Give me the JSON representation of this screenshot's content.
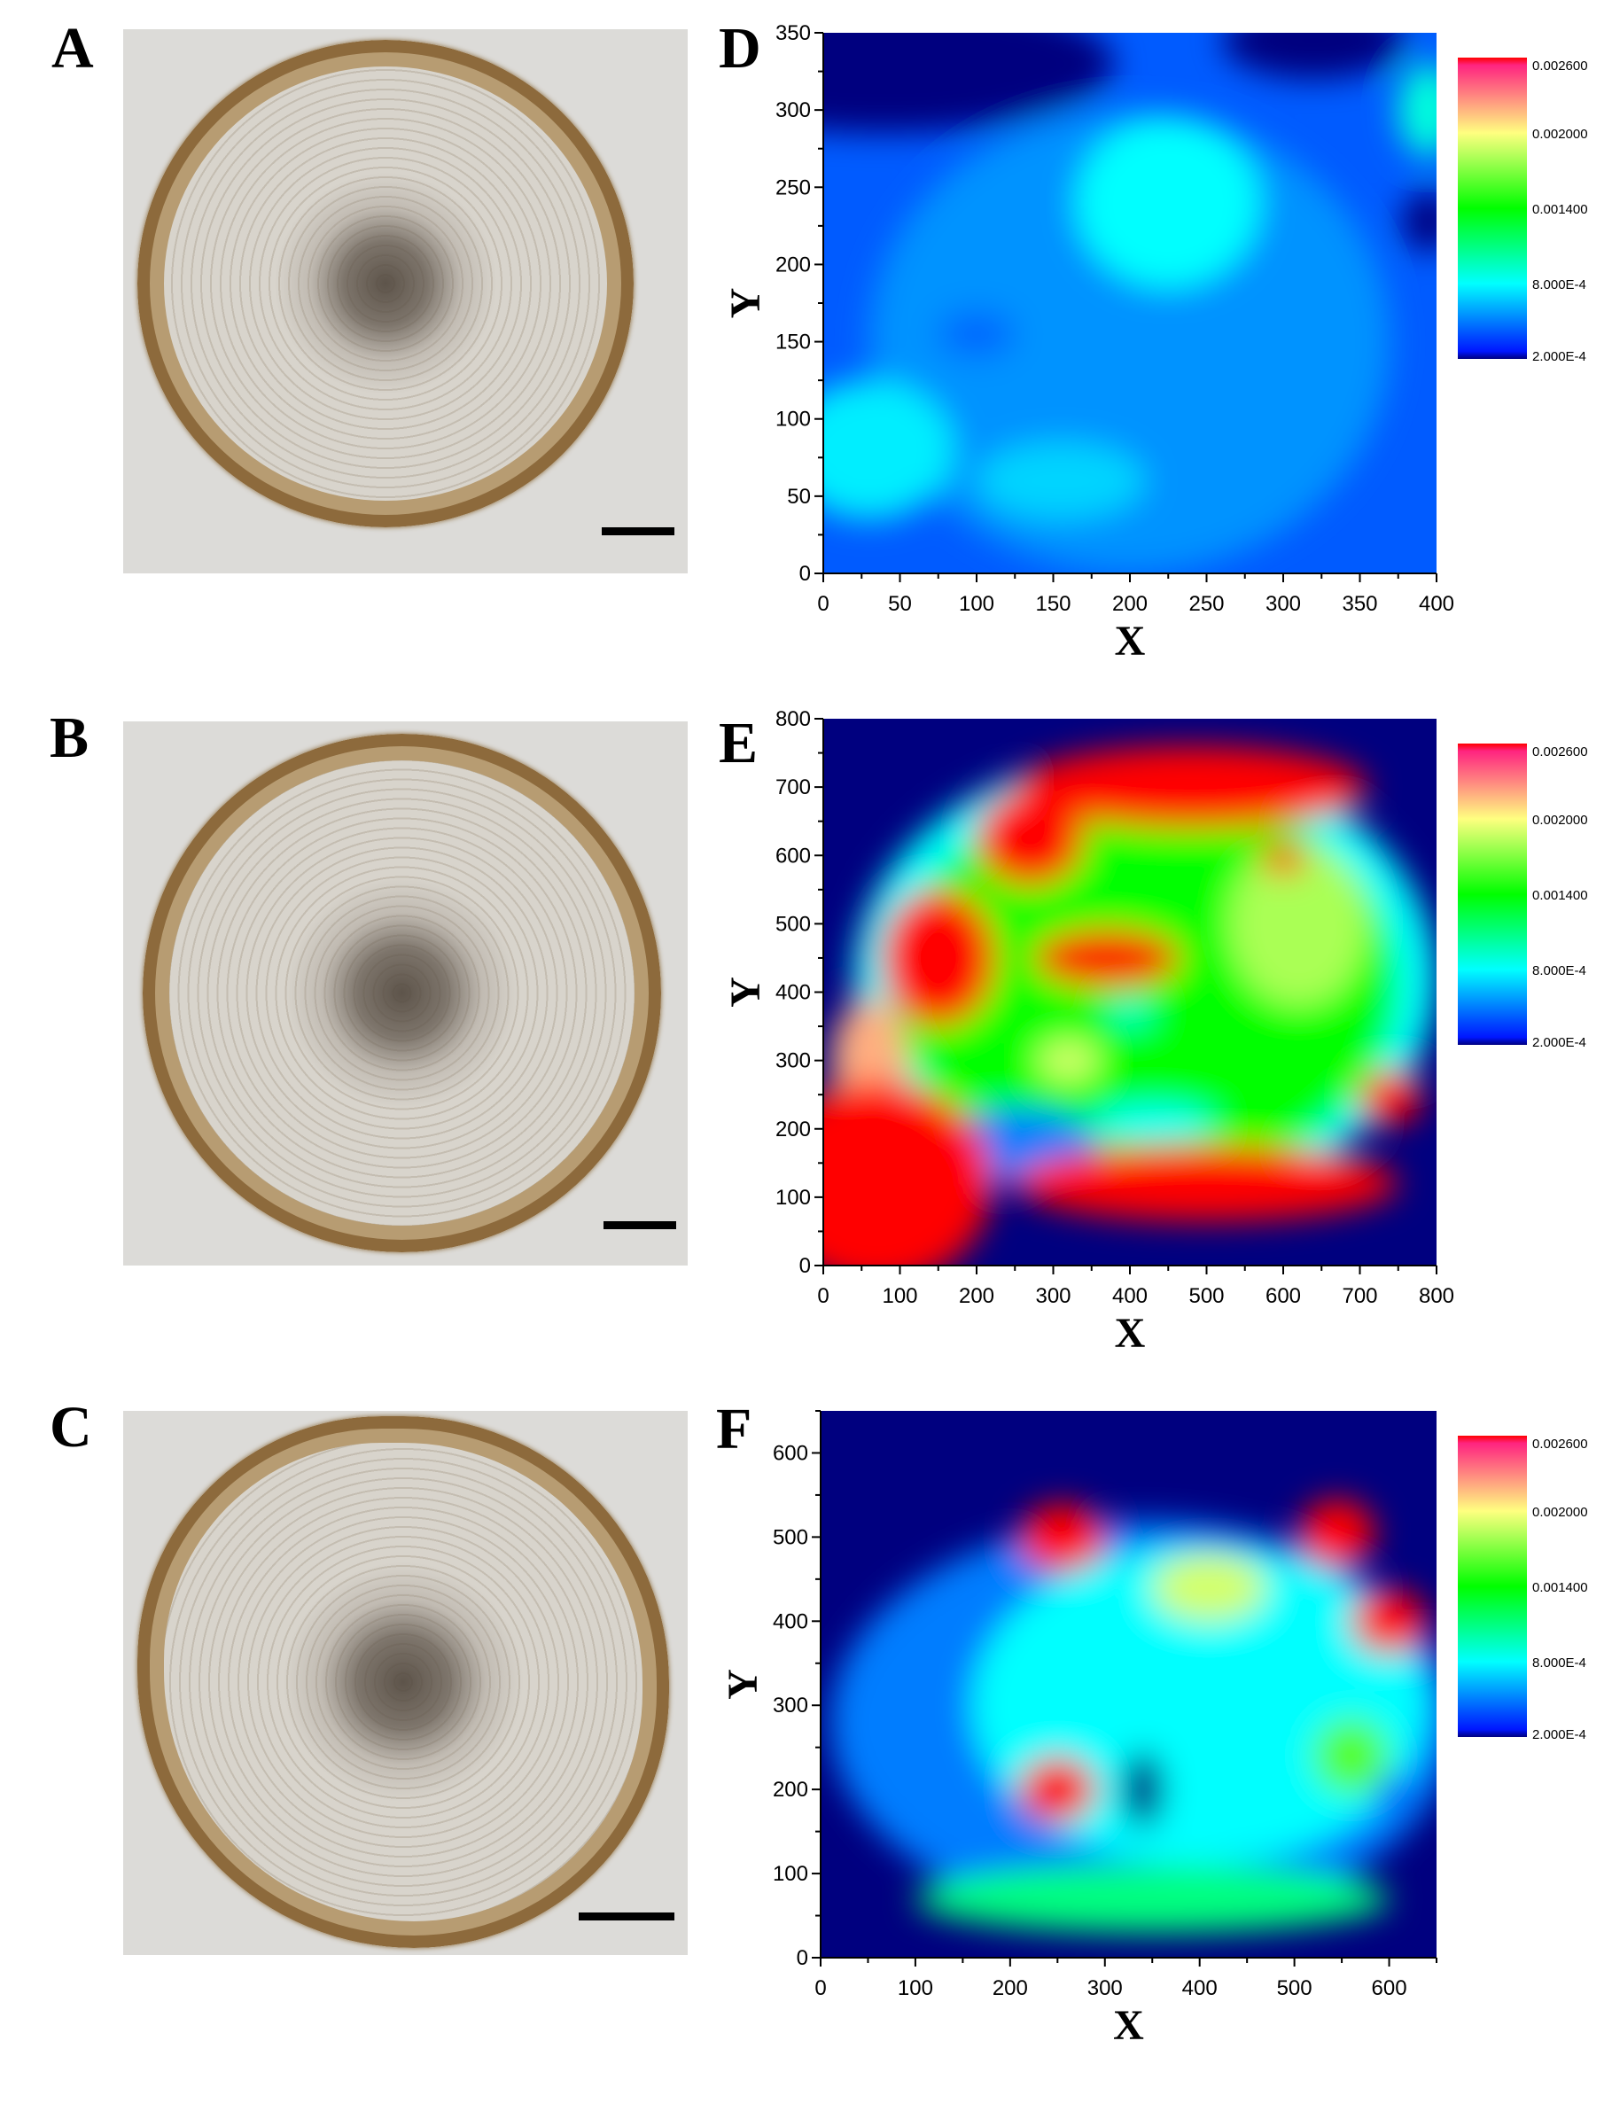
{
  "panel_labels": [
    "A",
    "B",
    "C",
    "D",
    "E",
    "F"
  ],
  "colormap": {
    "stops": [
      {
        "value": 0.0002,
        "color": "#00007f"
      },
      {
        "value": 0.00021,
        "color": "#0000ff"
      },
      {
        "value": 0.0008,
        "color": "#00ffff"
      },
      {
        "value": 0.0014,
        "color": "#00ff00"
      },
      {
        "value": 0.002,
        "color": "#ffff80"
      },
      {
        "value": 0.00255,
        "color": "#ff2080"
      },
      {
        "value": 0.0026,
        "color": "#ff0000"
      }
    ]
  },
  "chart_data": [
    {
      "type": "heatmap",
      "panel": "D",
      "xlabel": "X",
      "ylabel": "Y",
      "xlim": [
        0,
        400
      ],
      "ylim": [
        0,
        350
      ],
      "xticks": [
        "0",
        "50",
        "100",
        "150",
        "200",
        "250",
        "300",
        "350",
        "400"
      ],
      "yticks": [
        "0",
        "50",
        "100",
        "150",
        "200",
        "250",
        "300",
        "350"
      ],
      "colorbar": {
        "range": [
          0.0002,
          0.0026
        ],
        "tick_labels": [
          "0.002600",
          "0.002000",
          "0.001400",
          "8.000E-4",
          "2.000E-4"
        ],
        "tick_values": [
          0.0026,
          0.002,
          0.0014,
          0.0008,
          0.0002
        ]
      },
      "background_value": 0.00042,
      "features": [
        {
          "x": 200,
          "y": 150,
          "rx": 170,
          "ry": 150,
          "value": 0.00055
        },
        {
          "x": 40,
          "y": 330,
          "rx": 150,
          "ry": 45,
          "value": 0.0002
        },
        {
          "x": 320,
          "y": 345,
          "rx": 60,
          "ry": 25,
          "value": 0.0002
        },
        {
          "x": 395,
          "y": 228,
          "rx": 18,
          "ry": 20,
          "value": 0.0002
        },
        {
          "x": 225,
          "y": 240,
          "rx": 60,
          "ry": 55,
          "value": 0.0008
        },
        {
          "x": 30,
          "y": 80,
          "rx": 55,
          "ry": 45,
          "value": 0.00076
        },
        {
          "x": 155,
          "y": 60,
          "rx": 55,
          "ry": 25,
          "value": 0.0007
        },
        {
          "x": 395,
          "y": 300,
          "rx": 20,
          "ry": 30,
          "value": 0.00088
        },
        {
          "x": 100,
          "y": 155,
          "rx": 25,
          "ry": 15,
          "value": 0.00045
        }
      ]
    },
    {
      "type": "heatmap",
      "panel": "E",
      "xlabel": "X",
      "ylabel": "Y",
      "xlim": [
        0,
        800
      ],
      "ylim": [
        0,
        800
      ],
      "xticks": [
        "0",
        "100",
        "200",
        "300",
        "400",
        "500",
        "600",
        "700",
        "800"
      ],
      "yticks": [
        "0",
        "100",
        "200",
        "300",
        "400",
        "500",
        "600",
        "700",
        "800"
      ],
      "colorbar": {
        "range": [
          0.0002,
          0.0026
        ],
        "tick_labels": [
          "0.002600",
          "0.002000",
          "0.001400",
          "8.000E-4",
          "2.000E-4"
        ],
        "tick_values": [
          0.0026,
          0.002,
          0.0014,
          0.0008,
          0.0002
        ]
      },
      "background_value": 0.0002,
      "features": [
        {
          "x": 420,
          "y": 420,
          "rx": 380,
          "ry": 330,
          "value": 0.0008
        },
        {
          "x": 420,
          "y": 410,
          "rx": 330,
          "ry": 290,
          "value": 0.0014
        },
        {
          "x": 620,
          "y": 500,
          "rx": 90,
          "ry": 120,
          "value": 0.0018
        },
        {
          "x": 320,
          "y": 300,
          "rx": 40,
          "ry": 30,
          "value": 0.0019
        },
        {
          "x": 250,
          "y": 175,
          "rx": 110,
          "ry": 55,
          "value": 0.0005
        },
        {
          "x": 430,
          "y": 210,
          "rx": 80,
          "ry": 25,
          "value": 0.0008
        },
        {
          "x": 400,
          "y": 370,
          "rx": 30,
          "ry": 20,
          "value": 0.0009
        },
        {
          "x": 60,
          "y": 300,
          "rx": 50,
          "ry": 90,
          "value": 0.0022
        },
        {
          "x": 480,
          "y": 700,
          "rx": 230,
          "ry": 60,
          "value": 0.0026
        },
        {
          "x": 270,
          "y": 625,
          "rx": 70,
          "ry": 70,
          "value": 0.0026
        },
        {
          "x": 150,
          "y": 450,
          "rx": 75,
          "ry": 100,
          "value": 0.0026
        },
        {
          "x": 370,
          "y": 450,
          "rx": 95,
          "ry": 42,
          "value": 0.0026
        },
        {
          "x": 600,
          "y": 595,
          "rx": 30,
          "ry": 22,
          "value": 0.0026
        },
        {
          "x": 70,
          "y": 120,
          "rx": 150,
          "ry": 150,
          "value": 0.0026
        },
        {
          "x": 500,
          "y": 120,
          "rx": 250,
          "ry": 55,
          "value": 0.0026
        },
        {
          "x": 740,
          "y": 245,
          "rx": 40,
          "ry": 40,
          "value": 0.0026
        }
      ]
    },
    {
      "type": "heatmap",
      "panel": "F",
      "xlabel": "X",
      "ylabel": "Y",
      "xlim": [
        0,
        650
      ],
      "ylim": [
        0,
        650
      ],
      "xticks": [
        "0",
        "100",
        "200",
        "300",
        "400",
        "500",
        "600"
      ],
      "yticks": [
        "0",
        "100",
        "200",
        "300",
        "400",
        "500",
        "600"
      ],
      "colorbar": {
        "range": [
          0.0002,
          0.0026
        ],
        "tick_labels": [
          "0.002600",
          "0.002000",
          "0.001400",
          "8.000E-4",
          "2.000E-4"
        ],
        "tick_values": [
          0.0026,
          0.002,
          0.0014,
          0.0008,
          0.0002
        ]
      },
      "background_value": 0.0002,
      "features": [
        {
          "x": 340,
          "y": 280,
          "rx": 330,
          "ry": 240,
          "value": 0.0005
        },
        {
          "x": 400,
          "y": 300,
          "rx": 240,
          "ry": 190,
          "value": 0.0008
        },
        {
          "x": 350,
          "y": 70,
          "rx": 250,
          "ry": 40,
          "value": 0.0011
        },
        {
          "x": 560,
          "y": 240,
          "rx": 40,
          "ry": 45,
          "value": 0.0016
        },
        {
          "x": 410,
          "y": 440,
          "rx": 60,
          "ry": 40,
          "value": 0.0019
        },
        {
          "x": 340,
          "y": 200,
          "rx": 22,
          "ry": 45,
          "value": 0.0002
        },
        {
          "x": 600,
          "y": 200,
          "rx": 15,
          "ry": 15,
          "value": 0.0004
        },
        {
          "x": 255,
          "y": 500,
          "rx": 45,
          "ry": 40,
          "value": 0.0026
        },
        {
          "x": 545,
          "y": 505,
          "rx": 40,
          "ry": 40,
          "value": 0.0026
        },
        {
          "x": 600,
          "y": 400,
          "rx": 40,
          "ry": 38,
          "value": 0.0026
        },
        {
          "x": 250,
          "y": 200,
          "rx": 40,
          "ry": 38,
          "value": 0.0026
        }
      ]
    }
  ]
}
